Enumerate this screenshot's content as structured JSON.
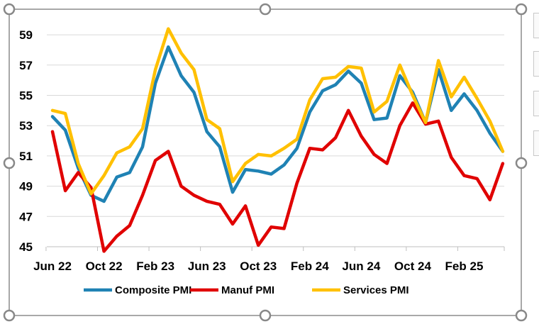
{
  "chart_data": {
    "type": "line",
    "title": "",
    "xlabel": "",
    "ylabel": "",
    "ylim": [
      45,
      60
    ],
    "yticks": [
      45,
      47,
      49,
      51,
      53,
      55,
      57,
      59
    ],
    "grid": "horizontal",
    "legend_position": "bottom",
    "x_tick_labels": [
      "Jun 22",
      "Oct 22",
      "Feb 23",
      "Jun 23",
      "Oct 23",
      "Feb 24",
      "Jun 24",
      "Oct 24",
      "Feb 25"
    ],
    "x": [
      "Jun 22",
      "Jul 22",
      "Aug 22",
      "Sep 22",
      "Oct 22",
      "Nov 22",
      "Dec 22",
      "Jan 23",
      "Feb 23",
      "Mar 23",
      "Apr 23",
      "May 23",
      "Jun 23",
      "Jul 23",
      "Aug 23",
      "Sep 23",
      "Oct 23",
      "Nov 23",
      "Dec 23",
      "Jan 24",
      "Feb 24",
      "Mar 24",
      "Apr 24",
      "May 24",
      "Jun 24",
      "Jul 24",
      "Aug 24",
      "Sep 24",
      "Oct 24",
      "Nov 24",
      "Dec 24",
      "Jan 25",
      "Feb 25",
      "Mar 25",
      "Apr 25",
      "May 25"
    ],
    "series": [
      {
        "name": "Composite PMI",
        "color": "#1f82b4",
        "values": [
          53.6,
          52.7,
          50.2,
          48.4,
          48.0,
          49.6,
          49.9,
          51.6,
          55.8,
          58.2,
          56.3,
          55.2,
          52.6,
          51.6,
          48.6,
          50.1,
          50.0,
          49.8,
          50.4,
          51.5,
          53.9,
          55.3,
          55.7,
          56.6,
          55.8,
          53.4,
          53.5,
          56.3,
          55.2,
          53.2,
          56.7,
          54.0,
          55.1,
          54.0,
          52.5,
          51.3
        ]
      },
      {
        "name": "Manuf PMI",
        "color": "#e00000",
        "values": [
          52.6,
          48.7,
          49.9,
          48.9,
          44.7,
          45.7,
          46.4,
          48.4,
          50.7,
          51.3,
          49.0,
          48.4,
          48.0,
          47.8,
          46.5,
          47.7,
          45.1,
          46.3,
          46.2,
          49.2,
          51.5,
          51.4,
          52.2,
          54.0,
          52.3,
          51.1,
          50.5,
          53.0,
          54.5,
          53.1,
          53.3,
          50.9,
          49.7,
          49.5,
          48.1,
          50.5
        ]
      },
      {
        "name": "Services PMI",
        "color": "#ffc000",
        "values": [
          54.0,
          53.8,
          50.5,
          48.5,
          49.7,
          51.2,
          51.6,
          52.8,
          56.7,
          59.4,
          57.8,
          56.7,
          53.4,
          52.8,
          49.3,
          50.5,
          51.1,
          51.0,
          51.5,
          52.1,
          54.7,
          56.1,
          56.2,
          56.9,
          56.8,
          53.9,
          54.6,
          57.0,
          55.0,
          53.2,
          57.3,
          54.9,
          56.2,
          54.8,
          53.3,
          51.3
        ]
      }
    ]
  }
}
